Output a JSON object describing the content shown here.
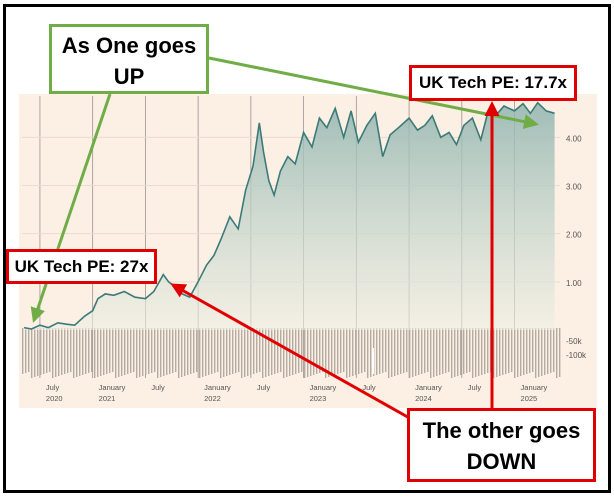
{
  "callouts": {
    "up_line1": "As One goes",
    "up_line2": "UP",
    "down_line1": "The other goes",
    "down_line2": "DOWN",
    "pe_2021": "UK Tech PE: 27x",
    "pe_2025": "UK Tech PE: 17.7x"
  },
  "colors": {
    "up_annotation": "#70ad47",
    "down_annotation": "#e00000",
    "price_line": "#3c7a7a",
    "panel_background": "#fcefe4",
    "volume_bars": "#b4aca4"
  },
  "chart_data": {
    "type": "area",
    "x_ticks": [
      {
        "month": "July",
        "year": "2020",
        "x": 2020.5
      },
      {
        "month": "January",
        "year": "2021",
        "x": 2021.0
      },
      {
        "month": "July",
        "year": "",
        "x": 2021.5
      },
      {
        "month": "January",
        "year": "2022",
        "x": 2022.0
      },
      {
        "month": "July",
        "year": "",
        "x": 2022.5
      },
      {
        "month": "January",
        "year": "2023",
        "x": 2023.0
      },
      {
        "month": "July",
        "year": "",
        "x": 2023.5
      },
      {
        "month": "January",
        "year": "2024",
        "x": 2024.0
      },
      {
        "month": "July",
        "year": "",
        "x": 2024.5
      },
      {
        "month": "January",
        "year": "2025",
        "x": 2025.0
      }
    ],
    "y_ticks": [
      "1.00",
      "2.00",
      "3.00",
      "4.00"
    ],
    "volume_ticks": [
      "-50k",
      "-100k"
    ],
    "ylim": [
      0,
      4.9
    ],
    "xlim": [
      2020.33,
      2025.45
    ],
    "series": [
      {
        "x": [
          2020.35,
          2020.42,
          2020.5,
          2020.58,
          2020.67,
          2020.75,
          2020.83,
          2020.92,
          2021.0,
          2021.05,
          2021.12,
          2021.2,
          2021.3,
          2021.4,
          2021.5,
          2021.58,
          2021.67,
          2021.72,
          2021.78,
          2021.85,
          2021.92,
          2022.0,
          2022.08,
          2022.15,
          2022.22,
          2022.3,
          2022.38,
          2022.45,
          2022.52,
          2022.58,
          2022.62,
          2022.67,
          2022.72,
          2022.78,
          2022.85,
          2022.92,
          2023.0,
          2023.08,
          2023.15,
          2023.22,
          2023.3,
          2023.38,
          2023.45,
          2023.52,
          2023.6,
          2023.68,
          2023.75,
          2023.82,
          2023.9,
          2024.0,
          2024.08,
          2024.15,
          2024.22,
          2024.3,
          2024.38,
          2024.45,
          2024.52,
          2024.6,
          2024.68,
          2024.75,
          2024.82,
          2024.9,
          2025.0,
          2025.08,
          2025.15,
          2025.22,
          2025.3,
          2025.38
        ],
        "y": [
          0.05,
          0.02,
          0.1,
          0.05,
          0.15,
          0.12,
          0.1,
          0.28,
          0.4,
          0.65,
          0.75,
          0.72,
          0.8,
          0.68,
          0.65,
          0.8,
          1.15,
          1.0,
          0.9,
          0.75,
          0.68,
          1.0,
          1.35,
          1.55,
          1.9,
          2.35,
          2.1,
          2.9,
          3.4,
          4.3,
          3.7,
          3.1,
          2.8,
          3.3,
          3.6,
          3.45,
          4.1,
          3.8,
          4.4,
          4.2,
          4.6,
          4.0,
          4.55,
          3.9,
          4.25,
          4.5,
          3.6,
          4.05,
          4.2,
          4.4,
          4.15,
          4.25,
          4.45,
          4.0,
          4.1,
          3.85,
          4.25,
          4.4,
          3.95,
          4.55,
          4.45,
          4.65,
          4.55,
          4.7,
          4.5,
          4.72,
          4.55,
          4.5
        ]
      }
    ]
  }
}
